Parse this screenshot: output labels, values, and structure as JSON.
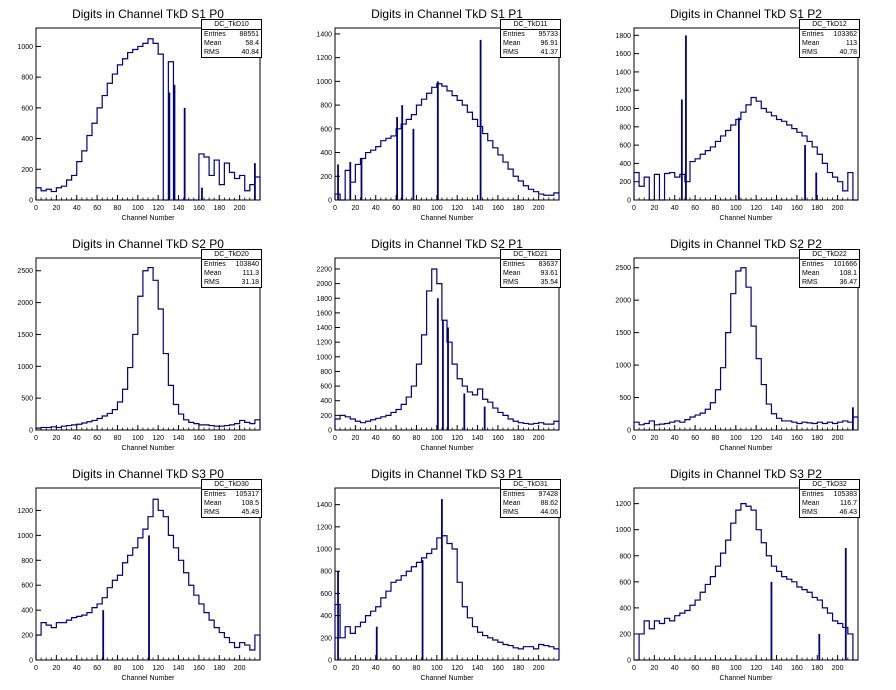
{
  "chart_data": [
    {
      "type": "line",
      "title": "Digits in Channel TkD S1 P0",
      "xlabel": "Channel Number",
      "xlim": [
        0,
        220
      ],
      "ylim": [
        0,
        1120
      ],
      "xticks": [
        0,
        20,
        40,
        60,
        80,
        100,
        120,
        140,
        160,
        180,
        200
      ],
      "yticks": [
        0,
        200,
        400,
        600,
        800,
        1000
      ],
      "stats": {
        "name": "DC_TkD10",
        "entries": "88551",
        "mean": "58.4",
        "rms": "40.84"
      },
      "x": [
        0,
        5,
        10,
        15,
        20,
        25,
        30,
        35,
        40,
        45,
        50,
        55,
        60,
        65,
        70,
        75,
        80,
        85,
        90,
        95,
        100,
        105,
        110,
        115,
        120,
        125,
        130,
        135,
        140,
        145,
        150,
        155,
        160,
        165,
        170,
        175,
        180,
        185,
        190,
        195,
        200,
        205,
        210,
        215,
        220
      ],
      "y": [
        80,
        60,
        70,
        55,
        80,
        90,
        130,
        160,
        250,
        320,
        420,
        500,
        600,
        680,
        760,
        820,
        880,
        920,
        960,
        980,
        1000,
        1020,
        1050,
        1020,
        950,
        0,
        900,
        0,
        0,
        0,
        0,
        0,
        300,
        280,
        160,
        260,
        100,
        240,
        180,
        140,
        160,
        60,
        100,
        150,
        0
      ],
      "spikes": [
        {
          "x": 131,
          "y": 700
        },
        {
          "x": 136,
          "y": 750
        },
        {
          "x": 146,
          "y": 600
        },
        {
          "x": 163,
          "y": 80
        },
        {
          "x": 215,
          "y": 240
        }
      ]
    },
    {
      "type": "line",
      "title": "Digits in Channel TkD S1 P1",
      "xlabel": "Channel Number",
      "xlim": [
        0,
        220
      ],
      "ylim": [
        0,
        1450
      ],
      "xticks": [
        0,
        20,
        40,
        60,
        80,
        100,
        120,
        140,
        160,
        180,
        200
      ],
      "yticks": [
        0,
        200,
        400,
        600,
        800,
        1000,
        1200,
        1400
      ],
      "stats": {
        "name": "DC_TkD11",
        "entries": "95733",
        "mean": "96.91",
        "rms": "41.37"
      },
      "x": [
        0,
        5,
        10,
        15,
        20,
        25,
        30,
        35,
        40,
        45,
        50,
        55,
        60,
        65,
        70,
        75,
        80,
        85,
        90,
        95,
        100,
        105,
        110,
        115,
        120,
        125,
        130,
        135,
        140,
        145,
        150,
        155,
        160,
        165,
        170,
        175,
        180,
        185,
        190,
        195,
        200,
        205,
        210,
        215,
        220
      ],
      "y": [
        50,
        0,
        250,
        150,
        300,
        350,
        400,
        420,
        450,
        500,
        520,
        540,
        600,
        640,
        680,
        720,
        800,
        850,
        900,
        950,
        980,
        960,
        920,
        880,
        840,
        800,
        740,
        680,
        620,
        560,
        500,
        440,
        380,
        320,
        260,
        200,
        160,
        120,
        90,
        70,
        50,
        40,
        40,
        60,
        0
      ],
      "spikes": [
        {
          "x": 3,
          "y": 300
        },
        {
          "x": 15,
          "y": 320
        },
        {
          "x": 26,
          "y": 350
        },
        {
          "x": 61,
          "y": 700
        },
        {
          "x": 66,
          "y": 800
        },
        {
          "x": 77,
          "y": 600
        },
        {
          "x": 101,
          "y": 1000
        },
        {
          "x": 143,
          "y": 1350
        }
      ]
    },
    {
      "type": "line",
      "title": "Digits in Channel TkD S1 P2",
      "xlabel": "Channel Number",
      "xlim": [
        0,
        220
      ],
      "ylim": [
        0,
        1880
      ],
      "xticks": [
        0,
        20,
        40,
        60,
        80,
        100,
        120,
        140,
        160,
        180,
        200
      ],
      "yticks": [
        0,
        200,
        400,
        600,
        800,
        1000,
        1200,
        1400,
        1600,
        1800
      ],
      "stats": {
        "name": "DC_TkD12",
        "entries": "103362",
        "mean": "113",
        "rms": "40.78"
      },
      "x": [
        0,
        5,
        10,
        15,
        20,
        25,
        30,
        35,
        40,
        45,
        50,
        55,
        60,
        65,
        70,
        75,
        80,
        85,
        90,
        95,
        100,
        105,
        110,
        115,
        120,
        125,
        130,
        135,
        140,
        145,
        150,
        155,
        160,
        165,
        170,
        175,
        180,
        185,
        190,
        195,
        200,
        205,
        210,
        215,
        220
      ],
      "y": [
        300,
        150,
        250,
        0,
        280,
        0,
        290,
        300,
        250,
        280,
        200,
        420,
        450,
        500,
        540,
        580,
        640,
        700,
        760,
        820,
        880,
        960,
        1040,
        1120,
        1080,
        1000,
        960,
        920,
        880,
        860,
        820,
        780,
        740,
        700,
        640,
        580,
        500,
        400,
        300,
        250,
        200,
        100,
        300,
        0,
        0
      ],
      "spikes": [
        {
          "x": 47,
          "y": 1100
        },
        {
          "x": 51,
          "y": 1800
        },
        {
          "x": 103,
          "y": 900
        },
        {
          "x": 168,
          "y": 600
        },
        {
          "x": 179,
          "y": 300
        }
      ]
    },
    {
      "type": "line",
      "title": "Digits in Channel TkD S2 P0",
      "xlabel": "Channel Number",
      "xlim": [
        0,
        220
      ],
      "ylim": [
        0,
        2700
      ],
      "xticks": [
        0,
        20,
        40,
        60,
        80,
        100,
        120,
        140,
        160,
        180,
        200
      ],
      "yticks": [
        0,
        500,
        1000,
        1500,
        2000,
        2500
      ],
      "stats": {
        "name": "DC_TkD20",
        "entries": "103840",
        "mean": "111.3",
        "rms": "31.18"
      },
      "x": [
        0,
        5,
        10,
        15,
        20,
        25,
        30,
        35,
        40,
        45,
        50,
        55,
        60,
        65,
        70,
        75,
        80,
        85,
        90,
        95,
        100,
        105,
        110,
        115,
        120,
        125,
        130,
        135,
        140,
        145,
        150,
        155,
        160,
        165,
        170,
        175,
        180,
        185,
        190,
        195,
        200,
        205,
        210,
        215,
        220
      ],
      "y": [
        30,
        40,
        40,
        50,
        40,
        60,
        70,
        80,
        90,
        110,
        130,
        150,
        180,
        220,
        260,
        320,
        440,
        640,
        980,
        1500,
        2100,
        2500,
        2550,
        2350,
        1900,
        1200,
        700,
        400,
        250,
        160,
        120,
        100,
        80,
        80,
        70,
        60,
        60,
        70,
        80,
        100,
        150,
        120,
        100,
        160,
        0
      ],
      "spikes": []
    },
    {
      "type": "line",
      "title": "Digits in Channel TkD S2 P1",
      "xlabel": "Channel Number",
      "xlim": [
        0,
        220
      ],
      "ylim": [
        0,
        2350
      ],
      "xticks": [
        0,
        20,
        40,
        60,
        80,
        100,
        120,
        140,
        160,
        180,
        200
      ],
      "yticks": [
        0,
        200,
        400,
        600,
        800,
        1000,
        1200,
        1400,
        1600,
        1800,
        2000,
        2200
      ],
      "stats": {
        "name": "DC_TkD21",
        "entries": "83637",
        "mean": "93.61",
        "rms": "35.54"
      },
      "x": [
        0,
        5,
        10,
        15,
        20,
        25,
        30,
        35,
        40,
        45,
        50,
        55,
        60,
        65,
        70,
        75,
        80,
        85,
        90,
        95,
        100,
        105,
        110,
        115,
        120,
        125,
        130,
        135,
        140,
        145,
        150,
        155,
        160,
        165,
        170,
        175,
        180,
        185,
        190,
        195,
        200,
        205,
        210,
        215,
        220
      ],
      "y": [
        150,
        200,
        180,
        150,
        120,
        100,
        120,
        140,
        160,
        180,
        200,
        240,
        280,
        350,
        450,
        600,
        900,
        1300,
        1900,
        2200,
        2000,
        1500,
        1200,
        900,
        700,
        600,
        520,
        480,
        560,
        420,
        380,
        300,
        240,
        200,
        150,
        120,
        100,
        90,
        80,
        90,
        100,
        80,
        80,
        120,
        0
      ],
      "spikes": [
        {
          "x": 101,
          "y": 1800
        },
        {
          "x": 106,
          "y": 1500
        },
        {
          "x": 111,
          "y": 1400
        },
        {
          "x": 127,
          "y": 500
        },
        {
          "x": 147,
          "y": 320
        }
      ]
    },
    {
      "type": "line",
      "title": "Digits in Channel TkD S2 P2",
      "xlabel": "Channel Number",
      "xlim": [
        0,
        220
      ],
      "ylim": [
        0,
        2650
      ],
      "xticks": [
        0,
        20,
        40,
        60,
        80,
        100,
        120,
        140,
        160,
        180,
        200
      ],
      "yticks": [
        0,
        500,
        1000,
        1500,
        2000,
        2500
      ],
      "stats": {
        "name": "DC_TkD22",
        "entries": "101666",
        "mean": "108.1",
        "rms": "36.47"
      },
      "x": [
        0,
        5,
        10,
        15,
        20,
        25,
        30,
        35,
        40,
        45,
        50,
        55,
        60,
        65,
        70,
        75,
        80,
        85,
        90,
        95,
        100,
        105,
        110,
        115,
        120,
        125,
        130,
        135,
        140,
        145,
        150,
        155,
        160,
        165,
        170,
        175,
        180,
        185,
        190,
        195,
        200,
        205,
        210,
        215,
        220
      ],
      "y": [
        120,
        80,
        100,
        140,
        80,
        90,
        100,
        120,
        140,
        120,
        160,
        200,
        230,
        260,
        320,
        420,
        620,
        960,
        1500,
        2100,
        2450,
        2500,
        2200,
        1600,
        1100,
        700,
        400,
        250,
        180,
        140,
        140,
        120,
        100,
        120,
        110,
        100,
        120,
        100,
        120,
        100,
        120,
        140,
        120,
        200,
        0
      ],
      "spikes": [
        {
          "x": 215,
          "y": 350
        }
      ]
    },
    {
      "type": "line",
      "title": "Digits in Channel TkD S3 P0",
      "xlabel": "Channel Number",
      "xlim": [
        0,
        220
      ],
      "ylim": [
        0,
        1380
      ],
      "xticks": [
        0,
        20,
        40,
        60,
        80,
        100,
        120,
        140,
        160,
        180,
        200
      ],
      "yticks": [
        0,
        200,
        400,
        600,
        800,
        1000,
        1200
      ],
      "stats": {
        "name": "DC_TkD30",
        "entries": "105317",
        "mean": "108.5",
        "rms": "45.49"
      },
      "x": [
        0,
        5,
        10,
        15,
        20,
        25,
        30,
        35,
        40,
        45,
        50,
        55,
        60,
        65,
        70,
        75,
        80,
        85,
        90,
        95,
        100,
        105,
        110,
        115,
        120,
        125,
        130,
        135,
        140,
        145,
        150,
        155,
        160,
        165,
        170,
        175,
        180,
        185,
        190,
        195,
        200,
        205,
        210,
        215,
        220
      ],
      "y": [
        200,
        300,
        280,
        260,
        300,
        300,
        320,
        340,
        350,
        360,
        380,
        420,
        450,
        500,
        580,
        640,
        680,
        780,
        840,
        900,
        980,
        1050,
        1150,
        1290,
        1200,
        1150,
        1000,
        900,
        800,
        700,
        600,
        520,
        450,
        380,
        320,
        260,
        220,
        180,
        140,
        100,
        140,
        120,
        80,
        200,
        0
      ],
      "spikes": [
        {
          "x": 66,
          "y": 400
        },
        {
          "x": 111,
          "y": 1000
        }
      ]
    },
    {
      "type": "line",
      "title": "Digits in Channel TkD S3 P1",
      "xlabel": "Channel Number",
      "xlim": [
        0,
        220
      ],
      "ylim": [
        0,
        1550
      ],
      "xticks": [
        0,
        20,
        40,
        60,
        80,
        100,
        120,
        140,
        160,
        180,
        200
      ],
      "yticks": [
        0,
        200,
        400,
        600,
        800,
        1000,
        1200,
        1400
      ],
      "stats": {
        "name": "DC_TkD31",
        "entries": "97428",
        "mean": "88.62",
        "rms": "44.06"
      },
      "x": [
        0,
        5,
        10,
        15,
        20,
        25,
        30,
        35,
        40,
        45,
        50,
        55,
        60,
        65,
        70,
        75,
        80,
        85,
        90,
        95,
        100,
        105,
        110,
        115,
        120,
        125,
        130,
        135,
        140,
        145,
        150,
        155,
        160,
        165,
        170,
        175,
        180,
        185,
        190,
        195,
        200,
        205,
        210,
        215,
        220
      ],
      "y": [
        500,
        200,
        300,
        240,
        300,
        340,
        400,
        440,
        480,
        560,
        620,
        700,
        720,
        760,
        800,
        840,
        880,
        920,
        960,
        1000,
        1100,
        1120,
        1050,
        1000,
        700,
        480,
        380,
        300,
        250,
        220,
        200,
        180,
        160,
        140,
        130,
        110,
        100,
        120,
        120,
        100,
        140,
        130,
        120,
        100,
        0
      ],
      "spikes": [
        {
          "x": 3,
          "y": 800
        },
        {
          "x": 41,
          "y": 300
        },
        {
          "x": 86,
          "y": 900
        },
        {
          "x": 105,
          "y": 1450
        }
      ]
    },
    {
      "type": "line",
      "title": "Digits in Channel TkD S3 P2",
      "xlabel": "Channel Number",
      "xlim": [
        0,
        220
      ],
      "ylim": [
        0,
        1320
      ],
      "xticks": [
        0,
        20,
        40,
        60,
        80,
        100,
        120,
        140,
        160,
        180,
        200
      ],
      "yticks": [
        0,
        200,
        400,
        600,
        800,
        1000,
        1200
      ],
      "stats": {
        "name": "DC_TkD32",
        "entries": "105383",
        "mean": "116.7",
        "rms": "46.43"
      },
      "x": [
        0,
        5,
        10,
        15,
        20,
        25,
        30,
        35,
        40,
        45,
        50,
        55,
        60,
        65,
        70,
        75,
        80,
        85,
        90,
        95,
        100,
        105,
        110,
        115,
        120,
        125,
        130,
        135,
        140,
        145,
        150,
        155,
        160,
        165,
        170,
        175,
        180,
        185,
        190,
        195,
        200,
        205,
        210,
        215,
        220
      ],
      "y": [
        0,
        200,
        300,
        240,
        300,
        280,
        320,
        300,
        340,
        360,
        380,
        420,
        460,
        520,
        580,
        640,
        720,
        820,
        920,
        1050,
        1150,
        1200,
        1180,
        1150,
        1000,
        900,
        800,
        720,
        680,
        640,
        620,
        600,
        560,
        540,
        520,
        480,
        460,
        400,
        360,
        300,
        280,
        250,
        200,
        0,
        0
      ],
      "spikes": [
        {
          "x": 135,
          "y": 600
        },
        {
          "x": 182,
          "y": 200
        },
        {
          "x": 208,
          "y": 860
        }
      ]
    }
  ],
  "colors": {
    "line": "#000080",
    "axis": "#000000",
    "background": "#ffffff"
  },
  "labels": {
    "entries": "Entries",
    "mean": "Mean",
    "rms": "RMS"
  }
}
